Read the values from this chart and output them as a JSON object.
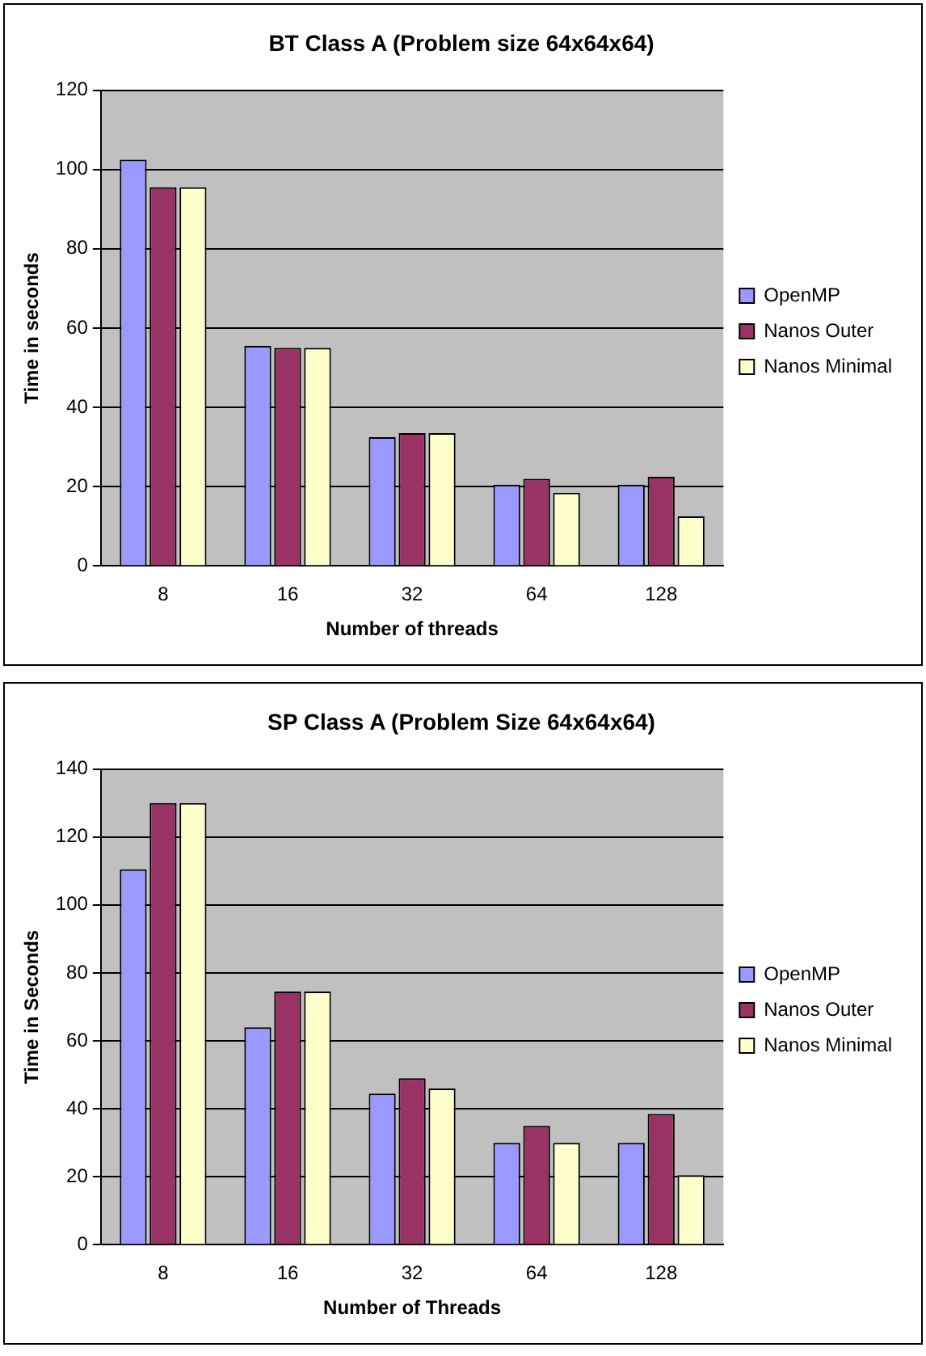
{
  "chart_data": [
    {
      "type": "bar",
      "title": "BT Class A (Problem size 64x64x64)",
      "xlabel": "Number of threads",
      "ylabel": "Time in seconds",
      "categories": [
        "8",
        "16",
        "32",
        "64",
        "128"
      ],
      "series": [
        {
          "name": "OpenMP",
          "color": "#9999ff",
          "values": [
            102.5,
            55.5,
            32.5,
            20.5,
            20.5
          ]
        },
        {
          "name": "Nanos Outer",
          "color": "#993366",
          "values": [
            95.5,
            55,
            33.5,
            22,
            22.5
          ]
        },
        {
          "name": "Nanos Minimal",
          "color": "#ffffcc",
          "values": [
            95.5,
            55,
            33.5,
            18.5,
            12.5
          ]
        }
      ],
      "ylim": [
        0,
        120
      ],
      "yticks": [
        0,
        20,
        40,
        60,
        80,
        100,
        120
      ],
      "grid": "y",
      "legend": "right"
    },
    {
      "type": "bar",
      "title": "SP Class A (Problem Size 64x64x64)",
      "xlabel": "Number of Threads",
      "ylabel": "Time in Seconds",
      "categories": [
        "8",
        "16",
        "32",
        "64",
        "128"
      ],
      "series": [
        {
          "name": "OpenMP",
          "color": "#9999ff",
          "values": [
            110.5,
            64,
            44.5,
            30,
            30
          ]
        },
        {
          "name": "Nanos Outer",
          "color": "#993366",
          "values": [
            130,
            74.5,
            49,
            35,
            38.5
          ]
        },
        {
          "name": "Nanos Minimal",
          "color": "#ffffcc",
          "values": [
            130,
            74.5,
            46,
            30,
            20.5
          ]
        }
      ],
      "ylim": [
        0,
        140
      ],
      "yticks": [
        0,
        20,
        40,
        60,
        80,
        100,
        120,
        140
      ],
      "grid": "y",
      "legend": "right"
    }
  ]
}
